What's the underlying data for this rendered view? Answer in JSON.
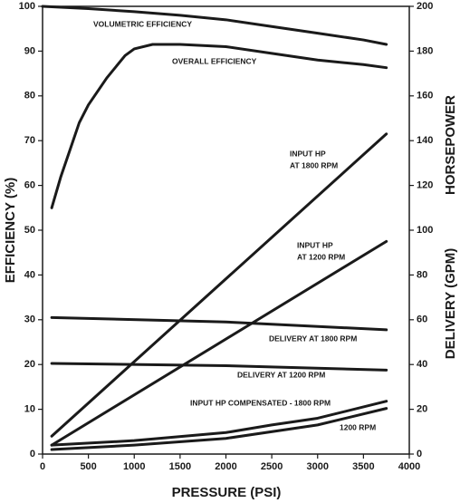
{
  "chart_data": {
    "type": "line",
    "xlabel": "PRESSURE (PSI)",
    "ylabel": "EFFICIENCY (%)",
    "y2labels": [
      "HORSEPOWER",
      "DELIVERY (GPM)"
    ],
    "xlim": [
      0,
      4000
    ],
    "xticks": [
      0,
      500,
      1000,
      1500,
      2000,
      2500,
      3000,
      3500,
      4000
    ],
    "ylim": [
      0,
      100
    ],
    "yticks": [
      0,
      10,
      20,
      30,
      40,
      50,
      60,
      70,
      80,
      90,
      100
    ],
    "y2lim": [
      0,
      200
    ],
    "y2ticks": [
      0,
      20,
      40,
      60,
      80,
      100,
      120,
      140,
      160,
      180,
      200
    ],
    "grid": false,
    "series": [
      {
        "name": [
          "VOLUMETRIC EFFICIENCY"
        ],
        "color": "#1a1a1a",
        "axis": "y",
        "x": [
          0,
          500,
          1000,
          1500,
          2000,
          2500,
          3000,
          3500,
          3750
        ],
        "values": [
          100,
          99.5,
          98.8,
          98,
          97,
          95.5,
          94,
          92.5,
          91.5
        ]
      },
      {
        "name": [
          "OVERALL EFFICIENCY"
        ],
        "color": "#1a1a1a",
        "axis": "y",
        "x": [
          100,
          200,
          300,
          400,
          500,
          700,
          900,
          1000,
          1200,
          1500,
          2000,
          2500,
          3000,
          3500,
          3750
        ],
        "values": [
          55,
          62,
          68,
          74,
          78,
          84,
          89,
          90.5,
          91.5,
          91.5,
          91,
          89.5,
          88,
          87,
          86.3
        ]
      },
      {
        "name": [
          "INPUT HP",
          "AT 1800 RPM"
        ],
        "color": "#1a1a1a",
        "axis": "y2",
        "x": [
          100,
          3750
        ],
        "values": [
          8,
          143
        ]
      },
      {
        "name": [
          "INPUT HP",
          "AT 1200 RPM"
        ],
        "color": "#1a1a1a",
        "axis": "y2",
        "x": [
          100,
          3750
        ],
        "values": [
          4,
          95
        ]
      },
      {
        "name": [
          "DELIVERY AT 1800 RPM"
        ],
        "color": "#1a1a1a",
        "axis": "y2",
        "x": [
          100,
          2000,
          3750
        ],
        "values": [
          61,
          59,
          55.5
        ]
      },
      {
        "name": [
          "DELIVERY AT 1200 RPM"
        ],
        "color": "#1a1a1a",
        "axis": "y2",
        "x": [
          100,
          2000,
          3750
        ],
        "values": [
          40.5,
          39.5,
          37.5
        ]
      },
      {
        "name": [
          "INPUT HP COMPENSATED - 1800 RPM"
        ],
        "color": "#1a1a1a",
        "axis": "y2",
        "x": [
          100,
          1000,
          2000,
          2500,
          3000,
          3750
        ],
        "values": [
          4,
          6,
          9.6,
          13,
          16,
          23.6
        ]
      },
      {
        "name": [
          "1200 RPM"
        ],
        "color": "#1a1a1a",
        "axis": "y2",
        "x": [
          100,
          1000,
          2000,
          3000,
          3750
        ],
        "values": [
          2,
          4,
          7,
          13,
          20.4
        ]
      }
    ]
  }
}
